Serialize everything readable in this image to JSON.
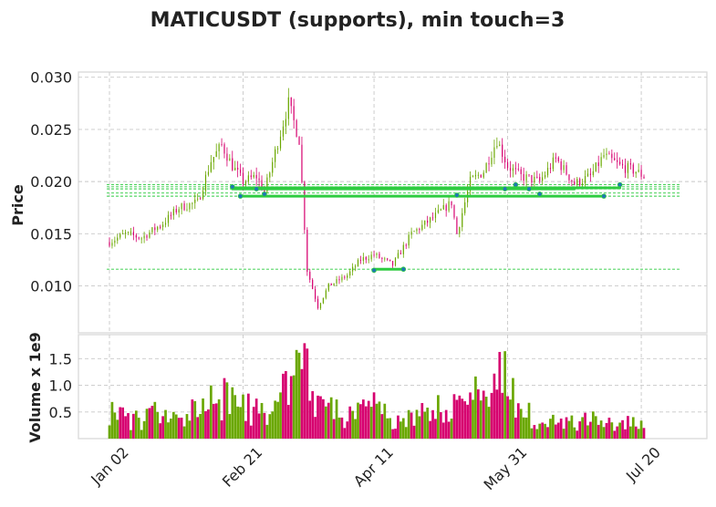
{
  "colors": {
    "up": "#6aa700",
    "down": "#d6006f",
    "support": "#2ecc40",
    "touch": "#1f77b4",
    "grid": "#c8c8c8",
    "frame": "#d9d9d9"
  },
  "chart_data": {
    "type": "candlestick",
    "title": "MATICUSDT (supports), min touch=3",
    "ylabel": "Price",
    "volume_ylabel": "Volume x 1e9",
    "ylim": [
      0.0055,
      0.0305
    ],
    "volume_ylim": [
      0,
      1.95
    ],
    "yticks": [
      0.01,
      0.015,
      0.02,
      0.025,
      0.03
    ],
    "ytick_labels": [
      "0.010",
      "0.015",
      "0.020",
      "0.025",
      "0.030"
    ],
    "volume_yticks": [
      0.5,
      1.0,
      1.5
    ],
    "volume_ytick_labels": [
      "0.5",
      "1.0",
      "1.5"
    ],
    "date_ticks": [
      {
        "date": "2023-01-02",
        "label": "Jan 02"
      },
      {
        "date": "2023-02-21",
        "label": "Feb 21"
      },
      {
        "date": "2023-04-11",
        "label": "Apr 11"
      },
      {
        "date": "2023-05-31",
        "label": "May 31"
      },
      {
        "date": "2023-07-20",
        "label": "Jul 20"
      }
    ],
    "grid": true,
    "support_levels": [
      0.0116,
      0.0186,
      0.0189,
      0.0193,
      0.0195,
      0.0197
    ],
    "support_segments": [
      {
        "start": "2023-02-17",
        "end": "2023-06-25",
        "price": 0.0193
      },
      {
        "start": "2023-02-17",
        "end": "2023-07-12",
        "price": 0.0194
      },
      {
        "start": "2023-02-20",
        "end": "2023-07-06",
        "price": 0.0186
      },
      {
        "start": "2023-04-11",
        "end": "2023-04-22",
        "price": 0.0116
      }
    ],
    "touch_points": [
      {
        "date": "2023-02-17",
        "price": 0.0195
      },
      {
        "date": "2023-02-20",
        "price": 0.0186
      },
      {
        "date": "2023-02-26",
        "price": 0.0193
      },
      {
        "date": "2023-03-01",
        "price": 0.0188
      },
      {
        "date": "2023-04-11",
        "price": 0.0115
      },
      {
        "date": "2023-04-22",
        "price": 0.0116
      },
      {
        "date": "2023-05-12",
        "price": 0.0187
      },
      {
        "date": "2023-05-30",
        "price": 0.0193
      },
      {
        "date": "2023-06-03",
        "price": 0.0197
      },
      {
        "date": "2023-06-08",
        "price": 0.0193
      },
      {
        "date": "2023-06-12",
        "price": 0.0188
      },
      {
        "date": "2023-07-06",
        "price": 0.0186
      },
      {
        "date": "2023-07-12",
        "price": 0.0197
      }
    ],
    "price_anchors": [
      [
        "2023-01-02",
        0.0142
      ],
      [
        "2023-01-08",
        0.015
      ],
      [
        "2023-01-14",
        0.0146
      ],
      [
        "2023-01-22",
        0.016
      ],
      [
        "2023-01-28",
        0.0175
      ],
      [
        "2023-02-04",
        0.018
      ],
      [
        "2023-02-09",
        0.022
      ],
      [
        "2023-02-13",
        0.0235
      ],
      [
        "2023-02-17",
        0.0215
      ],
      [
        "2023-02-21",
        0.02
      ],
      [
        "2023-02-26",
        0.0205
      ],
      [
        "2023-03-01",
        0.019
      ],
      [
        "2023-03-05",
        0.0228
      ],
      [
        "2023-03-10",
        0.0275
      ],
      [
        "2023-03-14",
        0.024
      ],
      [
        "2023-03-17",
        0.0115
      ],
      [
        "2023-03-21",
        0.008
      ],
      [
        "2023-03-25",
        0.01
      ],
      [
        "2023-04-01",
        0.011
      ],
      [
        "2023-04-06",
        0.0125
      ],
      [
        "2023-04-11",
        0.013
      ],
      [
        "2023-04-18",
        0.012
      ],
      [
        "2023-04-25",
        0.015
      ],
      [
        "2023-05-03",
        0.0165
      ],
      [
        "2023-05-10",
        0.018
      ],
      [
        "2023-05-12",
        0.015
      ],
      [
        "2023-05-17",
        0.02
      ],
      [
        "2023-05-22",
        0.021
      ],
      [
        "2023-05-27",
        0.024
      ],
      [
        "2023-05-31",
        0.0215
      ],
      [
        "2023-06-05",
        0.0205
      ],
      [
        "2023-06-12",
        0.02
      ],
      [
        "2023-06-18",
        0.0222
      ],
      [
        "2023-06-25",
        0.0198
      ],
      [
        "2023-07-01",
        0.0205
      ],
      [
        "2023-07-06",
        0.0225
      ],
      [
        "2023-07-12",
        0.0215
      ],
      [
        "2023-07-18",
        0.021
      ],
      [
        "2023-07-21",
        0.0205
      ]
    ],
    "volume_anchors": [
      [
        "2023-01-02",
        0.55
      ],
      [
        "2023-01-10",
        0.3
      ],
      [
        "2023-01-20",
        0.45
      ],
      [
        "2023-01-30",
        0.3
      ],
      [
        "2023-02-09",
        0.85
      ],
      [
        "2023-02-18",
        0.6
      ],
      [
        "2023-03-01",
        0.45
      ],
      [
        "2023-03-10",
        1.1
      ],
      [
        "2023-03-14",
        1.4
      ],
      [
        "2023-03-20",
        0.8
      ],
      [
        "2023-03-30",
        0.4
      ],
      [
        "2023-04-11",
        0.55
      ],
      [
        "2023-04-20",
        0.3
      ],
      [
        "2023-05-01",
        0.45
      ],
      [
        "2023-05-12",
        0.7
      ],
      [
        "2023-05-22",
        0.75
      ],
      [
        "2023-05-29",
        1.15
      ],
      [
        "2023-06-05",
        0.45
      ],
      [
        "2023-06-15",
        0.35
      ],
      [
        "2023-06-25",
        0.28
      ],
      [
        "2023-07-05",
        0.35
      ],
      [
        "2023-07-15",
        0.3
      ],
      [
        "2023-07-21",
        0.35
      ]
    ]
  }
}
